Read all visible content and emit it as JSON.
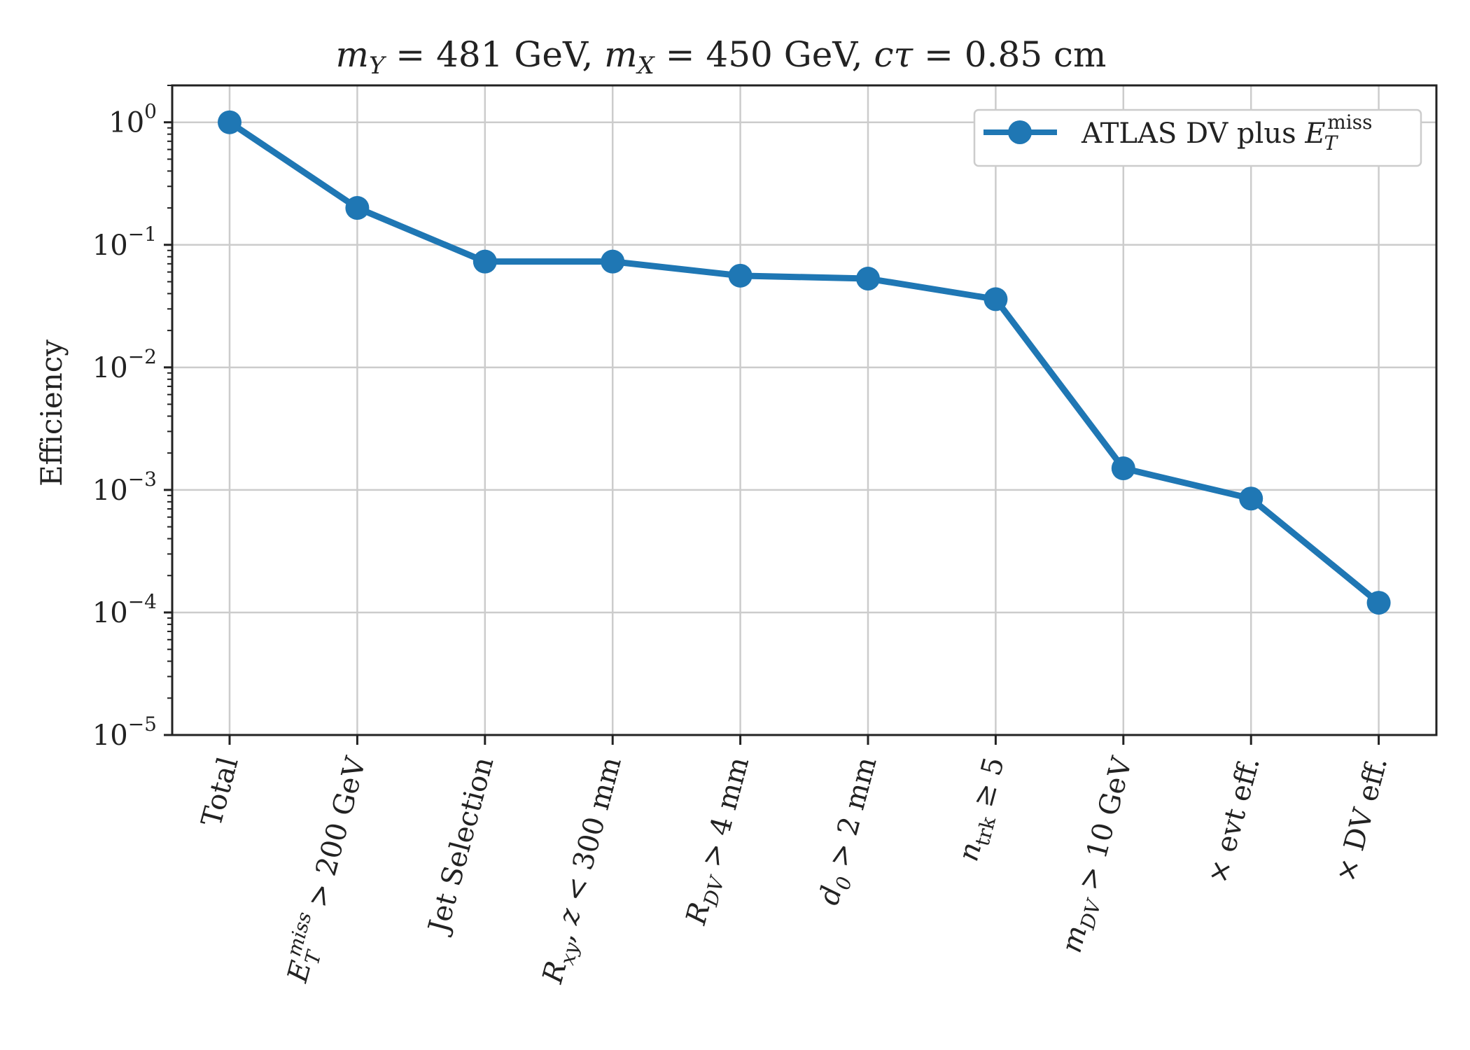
{
  "chart_data": {
    "type": "line",
    "title": "m_Y = 481 GeV, m_X = 450 GeV, cτ = 0.85 cm",
    "title_parts": {
      "mY": "m",
      "mY_sub": "Y",
      "mY_rest": " = 481 GeV, ",
      "mX": "m",
      "mX_sub": "X",
      "mX_rest": " = 450 GeV, ",
      "ctau": "cτ",
      "ctau_rest": " = 0.85 cm"
    },
    "xlabel": "",
    "ylabel": "Efficiency",
    "yscale": "log",
    "ylim": [
      1e-05,
      2
    ],
    "yticks": [
      {
        "value": 1,
        "base": "10",
        "exp": "0"
      },
      {
        "value": 0.1,
        "base": "10",
        "exp": "−1"
      },
      {
        "value": 0.01,
        "base": "10",
        "exp": "−2"
      },
      {
        "value": 0.001,
        "base": "10",
        "exp": "−3"
      },
      {
        "value": 0.0001,
        "base": "10",
        "exp": "−4"
      },
      {
        "value": 1e-05,
        "base": "10",
        "exp": "−5"
      }
    ],
    "categories": [
      "Total",
      "E_T^miss > 200 GeV",
      "Jet Selection",
      "R_xy, z < 300 mm",
      "R_DV > 4 mm",
      "d_0 > 2 mm",
      "n_trk ≥ 5",
      "m_DV > 10 GeV",
      "× evt eff.",
      "× DV eff."
    ],
    "series": [
      {
        "name": "ATLAS DV plus E_T^miss",
        "color": "#1f77b4",
        "values": [
          1.0,
          0.2,
          0.073,
          0.073,
          0.056,
          0.053,
          0.036,
          0.0015,
          0.00085,
          0.00012
        ]
      }
    ],
    "grid": true,
    "legend": {
      "position": "top-right",
      "label_text": "ATLAS DV plus ",
      "label_sym": "E",
      "label_sub": "T",
      "label_sup": "miss"
    }
  }
}
